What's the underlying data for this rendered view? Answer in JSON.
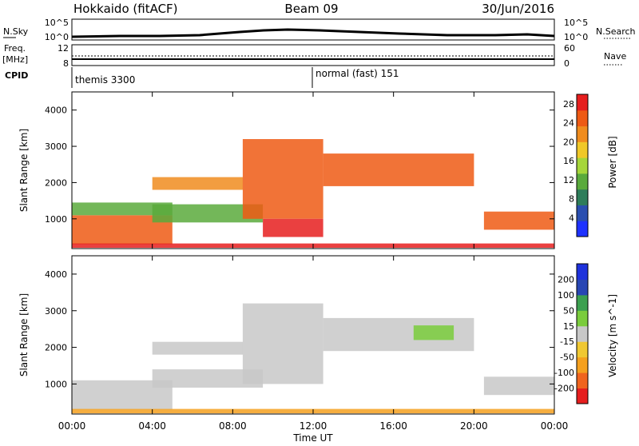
{
  "header": {
    "title_left": "Hokkaido (fitACF)",
    "title_center": "Beam 09",
    "title_right": "30/Jun/2016"
  },
  "noise_panel": {
    "left_label": "N.Sky",
    "right_label": "N.Search",
    "y_ticks_left": [
      "10^5",
      "10^0"
    ],
    "y_ticks_right": [
      "10^5",
      "10^0"
    ]
  },
  "freq_panel": {
    "left_label_1": "Freq.",
    "left_label_2": "[MHz]",
    "right_label": "Nave",
    "y_ticks_left": [
      "12",
      "8"
    ],
    "y_ticks_right": [
      "60",
      "0"
    ]
  },
  "cpid_panel": {
    "left_label": "CPID",
    "segments": [
      {
        "label": "themis 3300",
        "start_hour": 0
      },
      {
        "label": "normal (fast) 151",
        "start_hour": 12
      }
    ]
  },
  "colors": {
    "power_scale": [
      "#1e32ff",
      "#2a4fb0",
      "#2e7d5a",
      "#5aaa3c",
      "#a6d63a",
      "#f0c828",
      "#f08c1e",
      "#ee5a14",
      "#e61e1e"
    ],
    "velocity_scale": [
      "#e61e1e",
      "#f0641e",
      "#f5a01e",
      "#f0c832",
      "#c8c8c8",
      "#7acc3c",
      "#3ca050",
      "#2846b4",
      "#1e32dc"
    ]
  },
  "chart_data": [
    {
      "type": "heatmap",
      "ylabel": "Slant Range [km]",
      "y_ticks": [
        1000,
        2000,
        3000,
        4000
      ],
      "ylim": [
        180,
        4500
      ],
      "x_ticks": [
        "00:00",
        "04:00",
        "08:00",
        "12:00",
        "16:00",
        "20:00",
        "00:00"
      ],
      "xlim_hours": [
        0,
        24
      ],
      "colorbar_label": "Power [dB]",
      "colorbar_ticks": [
        4,
        8,
        12,
        16,
        20,
        24,
        28
      ],
      "colorbar_range": [
        0,
        30
      ],
      "bands": [
        {
          "t0": 0.0,
          "t1": 5.0,
          "r0": 300,
          "r1": 1100,
          "value": 26
        },
        {
          "t0": 0.0,
          "t1": 5.0,
          "r0": 1100,
          "r1": 1450,
          "value": 10
        },
        {
          "t0": 4.0,
          "t1": 8.5,
          "r0": 1800,
          "r1": 2150,
          "value": 22
        },
        {
          "t0": 4.0,
          "t1": 9.5,
          "r0": 900,
          "r1": 1400,
          "value": 12
        },
        {
          "t0": 8.5,
          "t1": 12.5,
          "r0": 1000,
          "r1": 3200,
          "value": 24
        },
        {
          "t0": 9.5,
          "t1": 12.5,
          "r0": 500,
          "r1": 1000,
          "value": 27
        },
        {
          "t0": 12.5,
          "t1": 20.0,
          "r0": 1900,
          "r1": 2800,
          "value": 24
        },
        {
          "t0": 20.5,
          "t1": 24.0,
          "r0": 700,
          "r1": 1200,
          "value": 25
        },
        {
          "t0": 0.0,
          "t1": 24.0,
          "r0": 200,
          "r1": 320,
          "value": 28
        }
      ]
    },
    {
      "type": "heatmap",
      "ylabel": "Slant Range [km]",
      "y_ticks": [
        1000,
        2000,
        3000,
        4000
      ],
      "ylim": [
        180,
        4500
      ],
      "x_ticks": [
        "00:00",
        "04:00",
        "08:00",
        "12:00",
        "16:00",
        "20:00",
        "00:00"
      ],
      "xlabel": "Time UT",
      "xlim_hours": [
        0,
        24
      ],
      "colorbar_label": "Velocity [m s^-1]",
      "colorbar_ticks": [
        -200,
        -100,
        -50,
        -15,
        15,
        50,
        100,
        200
      ],
      "bands": [
        {
          "t0": 0.0,
          "t1": 5.0,
          "r0": 300,
          "r1": 1100,
          "value": 0
        },
        {
          "t0": 4.0,
          "t1": 8.5,
          "r0": 1800,
          "r1": 2150,
          "value": 0
        },
        {
          "t0": 4.0,
          "t1": 9.5,
          "r0": 900,
          "r1": 1400,
          "value": 0
        },
        {
          "t0": 8.5,
          "t1": 12.5,
          "r0": 1000,
          "r1": 3200,
          "value": 0
        },
        {
          "t0": 12.5,
          "t1": 20.0,
          "r0": 1900,
          "r1": 2800,
          "value": 0
        },
        {
          "t0": 17.0,
          "t1": 19.0,
          "r0": 2200,
          "r1": 2600,
          "value": 40
        },
        {
          "t0": 20.5,
          "t1": 24.0,
          "r0": 700,
          "r1": 1200,
          "value": 0
        },
        {
          "t0": 0.0,
          "t1": 24.0,
          "r0": 200,
          "r1": 320,
          "value": -60
        }
      ]
    }
  ]
}
